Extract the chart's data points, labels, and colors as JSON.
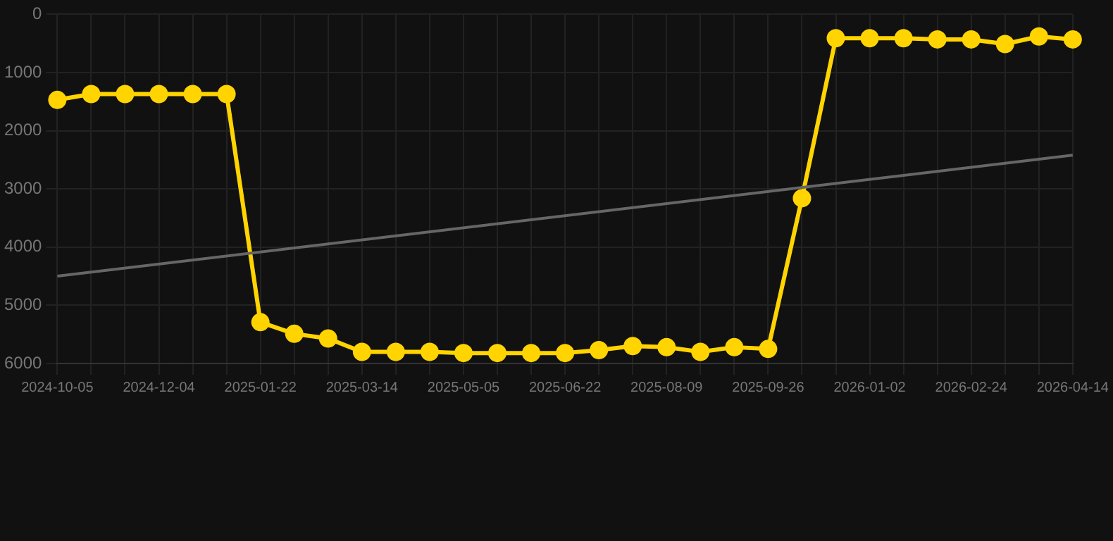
{
  "chart_data": {
    "type": "line",
    "categories": [
      "2024-10-05",
      null,
      null,
      "2024-12-04",
      null,
      null,
      "2025-01-22",
      null,
      null,
      "2025-03-14",
      null,
      null,
      "2025-05-05",
      null,
      null,
      "2025-06-22",
      null,
      null,
      "2025-08-09",
      null,
      null,
      "2025-09-26",
      null,
      null,
      "2026-01-02",
      null,
      null,
      "2026-02-24",
      null,
      null,
      "2026-04-14"
    ],
    "series": [
      {
        "color": "#ffd400",
        "marker": "circle",
        "values": [
          1470,
          1370,
          1370,
          1370,
          1370,
          1370,
          5290,
          5490,
          5570,
          5800,
          5800,
          5800,
          5820,
          5820,
          5820,
          5820,
          5770,
          5700,
          5720,
          5800,
          5720,
          5750,
          3160,
          410,
          410,
          410,
          430,
          430,
          510,
          380,
          430
        ]
      },
      {
        "color": "#666666",
        "marker": "none",
        "values": [
          4500,
          null,
          null,
          null,
          null,
          null,
          null,
          null,
          null,
          null,
          null,
          null,
          null,
          null,
          null,
          null,
          null,
          null,
          null,
          null,
          null,
          null,
          null,
          null,
          null,
          null,
          null,
          null,
          null,
          null,
          2420
        ]
      }
    ],
    "ylim": [
      6000,
      0
    ],
    "yticks": [
      0,
      1000,
      2000,
      3000,
      4000,
      5000,
      6000
    ],
    "grid": true,
    "line_style": "solid"
  }
}
